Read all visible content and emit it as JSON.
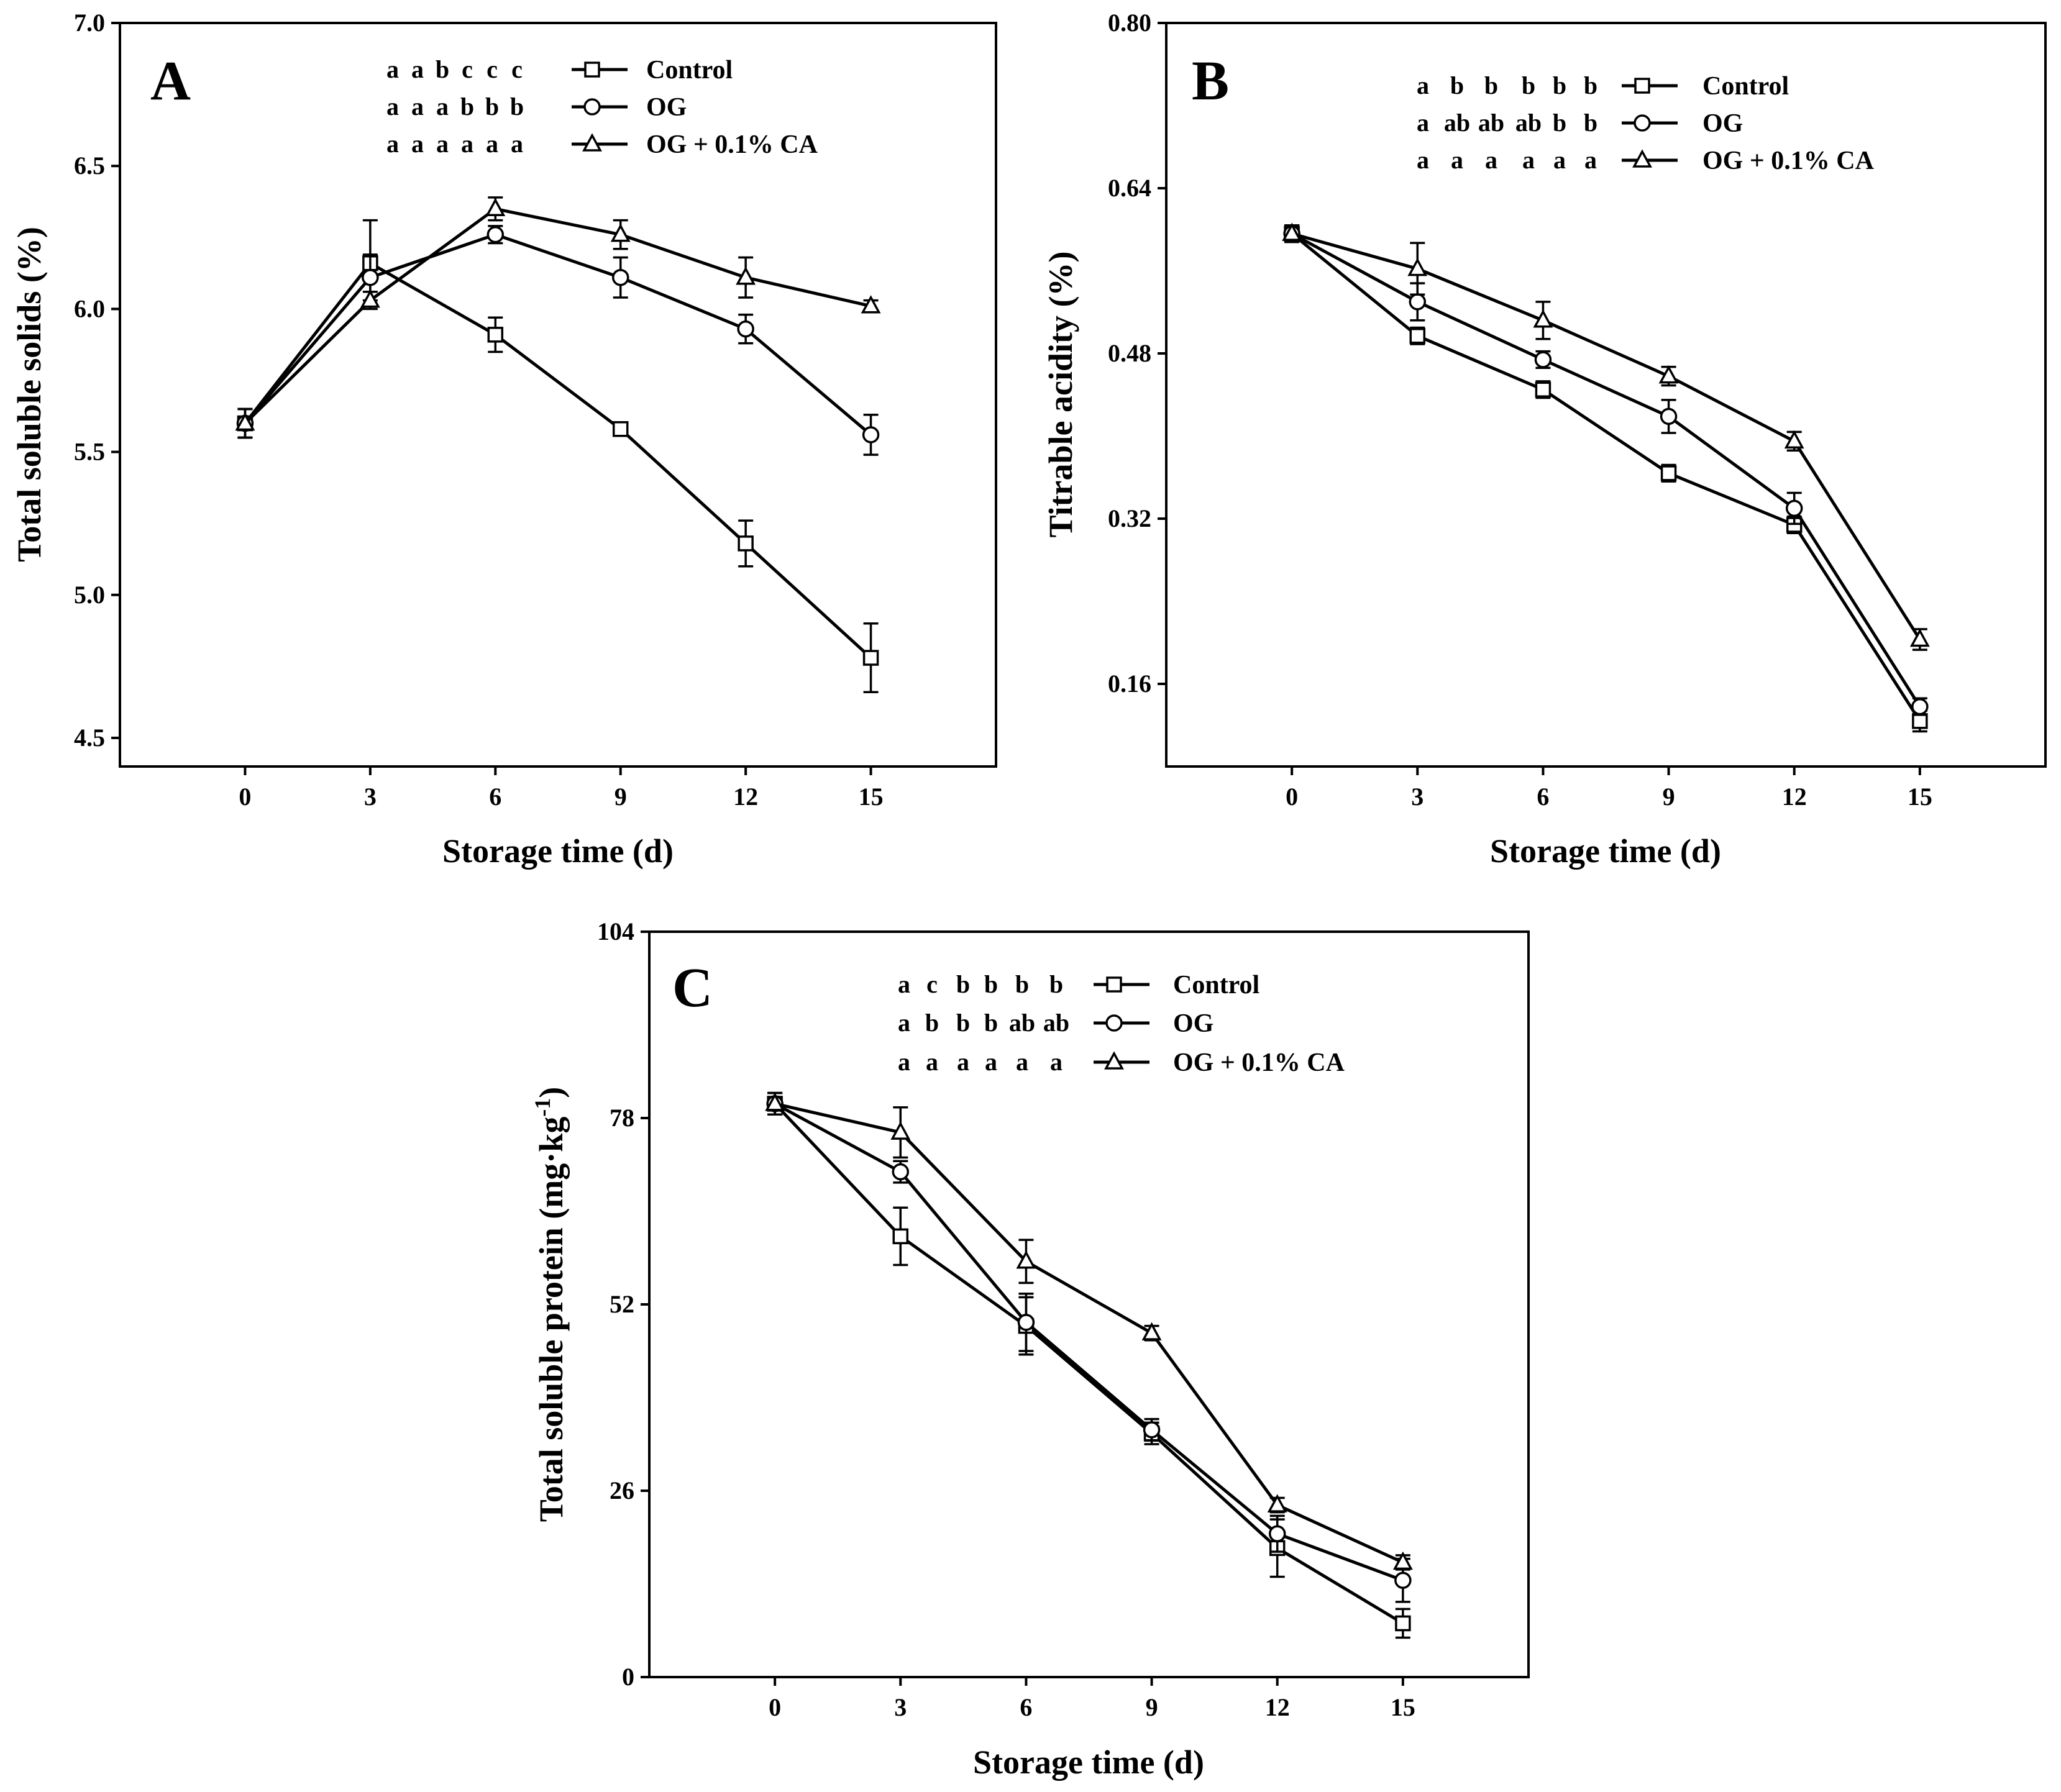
{
  "chart_data": [
    {
      "panel": "A",
      "type": "line",
      "x": [
        0,
        3,
        6,
        9,
        12,
        15
      ],
      "xlabel": "Storage time (d)",
      "ylabel": "Total soluble solids (%)",
      "xlim": [
        -3,
        18
      ],
      "ylim": [
        4.4,
        7.0
      ],
      "yticks": [
        4.5,
        5.0,
        5.5,
        6.0,
        6.5,
        7.0
      ],
      "ytick_labels": [
        "4.5",
        "5.0",
        "5.5",
        "6.0",
        "6.5",
        "7.0"
      ],
      "xticks": [
        0,
        3,
        6,
        9,
        12,
        15
      ],
      "xtick_labels": [
        "0",
        "3",
        "6",
        "9",
        "12",
        "15"
      ],
      "legend_position": "top-right",
      "series": [
        {
          "name": "Control",
          "marker": "square",
          "values": [
            5.6,
            6.16,
            5.91,
            5.58,
            5.18,
            4.78
          ],
          "errors": [
            0.05,
            0.15,
            0.06,
            0.02,
            0.08,
            0.12
          ],
          "letters": "a a b c c c"
        },
        {
          "name": "OG",
          "marker": "circle",
          "values": [
            5.6,
            6.11,
            6.26,
            6.11,
            5.93,
            5.56
          ],
          "errors": [
            0.05,
            0.08,
            0.03,
            0.07,
            0.05,
            0.07
          ],
          "letters": "a a a b b b"
        },
        {
          "name": "OG + 0.1% CA",
          "marker": "triangle",
          "values": [
            5.6,
            6.03,
            6.35,
            6.26,
            6.11,
            6.01
          ],
          "errors": [
            0.05,
            0.03,
            0.04,
            0.05,
            0.07,
            0.02
          ],
          "letters": "a a a a a a"
        }
      ]
    },
    {
      "panel": "B",
      "type": "line",
      "x": [
        0,
        3,
        6,
        9,
        12,
        15
      ],
      "xlabel": "Storage time (d)",
      "ylabel": "Titrable acidity (%)",
      "xlim": [
        -3,
        18
      ],
      "ylim": [
        0.08,
        0.8
      ],
      "yticks": [
        0.16,
        0.32,
        0.48,
        0.64,
        0.8
      ],
      "ytick_labels": [
        "0.16",
        "0.32",
        "0.48",
        "0.64",
        "0.80"
      ],
      "xticks": [
        0,
        3,
        6,
        9,
        12,
        15
      ],
      "xtick_labels": [
        "0",
        "3",
        "6",
        "9",
        "12",
        "15"
      ],
      "legend_position": "top-right",
      "series": [
        {
          "name": "Control",
          "marker": "square",
          "values": [
            0.596,
            0.497,
            0.445,
            0.364,
            0.314,
            0.124
          ],
          "errors": [
            0.008,
            0.008,
            0.008,
            0.008,
            0.008,
            0.01
          ],
          "letters": "a b b b b b"
        },
        {
          "name": "OG",
          "marker": "circle",
          "values": [
            0.596,
            0.53,
            0.474,
            0.419,
            0.33,
            0.138
          ],
          "errors": [
            0.008,
            0.018,
            0.008,
            0.016,
            0.015,
            0.008
          ],
          "letters": "a ab ab ab b b"
        },
        {
          "name": "OG + 0.1% CA",
          "marker": "triangle",
          "values": [
            0.596,
            0.562,
            0.512,
            0.458,
            0.395,
            0.203
          ],
          "errors": [
            0.008,
            0.025,
            0.018,
            0.009,
            0.009,
            0.01
          ],
          "letters": "a a a a a a"
        }
      ]
    },
    {
      "panel": "C",
      "type": "line",
      "x": [
        0,
        3,
        6,
        9,
        12,
        15
      ],
      "xlabel": "Storage time (d)",
      "ylabel": "Total soluble protein (mg·kg",
      "ylabel_superscript": "-1",
      "ylabel_suffix": ")",
      "xlim": [
        -3,
        18
      ],
      "ylim": [
        0,
        104
      ],
      "yticks": [
        0,
        26,
        52,
        78,
        104
      ],
      "ytick_labels": [
        "0",
        "26",
        "52",
        "78",
        "104"
      ],
      "xticks": [
        0,
        3,
        6,
        9,
        12,
        15
      ],
      "xtick_labels": [
        "0",
        "3",
        "6",
        "9",
        "12",
        "15"
      ],
      "legend_position": "top-right",
      "series": [
        {
          "name": "Control",
          "marker": "square",
          "values": [
            80.0,
            61.5,
            49.0,
            34.0,
            18.0,
            7.5
          ],
          "errors": [
            1.5,
            4.0,
            4.0,
            1.5,
            4.0,
            2.0
          ],
          "letters": "a c b b b b"
        },
        {
          "name": "OG",
          "marker": "circle",
          "values": [
            80.0,
            70.5,
            49.5,
            34.5,
            20.0,
            13.5
          ],
          "errors": [
            1.5,
            1.5,
            4.0,
            1.5,
            2.5,
            3.0
          ],
          "letters": "a b b b ab ab"
        },
        {
          "name": "OG + 0.1% CA",
          "marker": "triangle",
          "values": [
            80.0,
            76.0,
            58.0,
            48.0,
            24.0,
            16.0
          ],
          "errors": [
            1.5,
            3.5,
            3.0,
            1.0,
            1.0,
            1.0
          ],
          "letters": "a a a a a a"
        }
      ]
    }
  ]
}
